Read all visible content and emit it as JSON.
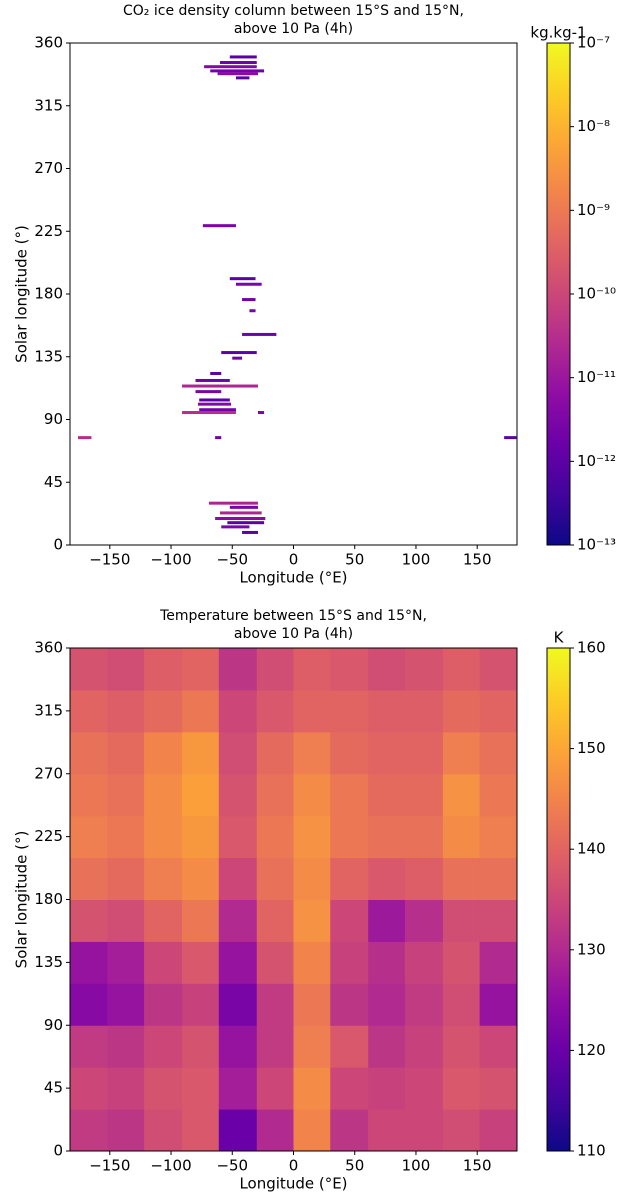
{
  "chart_data": [
    {
      "type": "segment",
      "title": [
        "CO₂ ice density column between 15°S and 15°N,",
        "above 10 Pa (4h)"
      ],
      "xlabel": "Longitude (°E)",
      "ylabel": "Solar longitude (°)",
      "colorbar_label": "kg.kg-1",
      "colormap": "plasma",
      "clog": true,
      "xlim": [
        -182.5,
        182.5
      ],
      "xticks": [
        {
          "value": -150,
          "label": "−150"
        },
        {
          "value": -100,
          "label": "−100"
        },
        {
          "value": -50,
          "label": "−50"
        },
        0,
        50,
        100,
        150
      ],
      "ylim": [
        0,
        360
      ],
      "yticks": [
        0,
        45,
        90,
        135,
        180,
        225,
        270,
        315,
        360
      ],
      "clim": [
        1e-13,
        1e-07
      ],
      "cticks": [
        {
          "value": 1e-13,
          "label": "10⁻¹³"
        },
        {
          "value": 1e-12,
          "label": "10⁻¹²"
        },
        {
          "value": 1e-11,
          "label": "10⁻¹¹"
        },
        {
          "value": 1e-10,
          "label": "10⁻¹⁰"
        },
        {
          "value": 1e-09,
          "label": "10⁻⁹"
        },
        {
          "value": 1e-08,
          "label": "10⁻⁸"
        },
        {
          "value": 1e-07,
          "label": "10⁻⁷"
        }
      ],
      "segments": [
        {
          "lon": [
            -52,
            -30
          ],
          "ls": 350,
          "value": 1e-12
        },
        {
          "lon": [
            -60,
            -30
          ],
          "ls": 346,
          "value": 2e-12
        },
        {
          "lon": [
            -73,
            -30
          ],
          "ls": 343,
          "value": 4e-12
        },
        {
          "lon": [
            -68,
            -24
          ],
          "ls": 340,
          "value": 2e-12
        },
        {
          "lon": [
            -62,
            -29
          ],
          "ls": 338,
          "value": 5e-12
        },
        {
          "lon": [
            -47,
            -36
          ],
          "ls": 335,
          "value": 1e-12
        },
        {
          "lon": [
            -74,
            -47
          ],
          "ls": 229,
          "value": 3e-12
        },
        {
          "lon": [
            -52,
            -31
          ],
          "ls": 191,
          "value": 1e-12
        },
        {
          "lon": [
            -47,
            -26
          ],
          "ls": 187,
          "value": 3e-12
        },
        {
          "lon": [
            -42,
            -31
          ],
          "ls": 176,
          "value": 2e-12
        },
        {
          "lon": [
            -36,
            -31
          ],
          "ls": 168,
          "value": 3e-12
        },
        {
          "lon": [
            -42,
            -14
          ],
          "ls": 151,
          "value": 2e-12
        },
        {
          "lon": [
            -59,
            -30
          ],
          "ls": 138,
          "value": 1e-12
        },
        {
          "lon": [
            -50,
            -42
          ],
          "ls": 134,
          "value": 2e-12
        },
        {
          "lon": [
            -68,
            -59
          ],
          "ls": 123,
          "value": 1e-12
        },
        {
          "lon": [
            -80,
            -52
          ],
          "ls": 118,
          "value": 2e-12
        },
        {
          "lon": [
            -91,
            -29
          ],
          "ls": 114,
          "value": 2e-11
        },
        {
          "lon": [
            -80,
            -59
          ],
          "ls": 110,
          "value": 3e-12
        },
        {
          "lon": [
            -77,
            -52
          ],
          "ls": 104,
          "value": 1e-12
        },
        {
          "lon": [
            -78,
            -51
          ],
          "ls": 101,
          "value": 4e-12
        },
        {
          "lon": [
            -77,
            -47
          ],
          "ls": 97,
          "value": 2e-12
        },
        {
          "lon": [
            -91,
            -47
          ],
          "ls": 95,
          "value": 3e-11
        },
        {
          "lon": [
            -29,
            -24
          ],
          "ls": 95,
          "value": 3e-12
        },
        {
          "lon": [
            -176,
            -165
          ],
          "ls": 77,
          "value": 3e-11
        },
        {
          "lon": [
            172,
            182
          ],
          "ls": 77,
          "value": 1e-12
        },
        {
          "lon": [
            -64,
            -59
          ],
          "ls": 77,
          "value": 2e-12
        },
        {
          "lon": [
            -69,
            -29
          ],
          "ls": 30,
          "value": 2e-11
        },
        {
          "lon": [
            -52,
            -29
          ],
          "ls": 27,
          "value": 3e-12
        },
        {
          "lon": [
            -60,
            -26
          ],
          "ls": 23,
          "value": 2e-11
        },
        {
          "lon": [
            -64,
            -23
          ],
          "ls": 19,
          "value": 5e-12
        },
        {
          "lon": [
            -54,
            -24
          ],
          "ls": 16,
          "value": 1e-12
        },
        {
          "lon": [
            -59,
            -36
          ],
          "ls": 13,
          "value": 3e-12
        },
        {
          "lon": [
            -42,
            -29
          ],
          "ls": 9,
          "value": 1e-12
        }
      ]
    },
    {
      "type": "heatmap",
      "title": [
        "Temperature between 15°S and 15°N,",
        "above 10 Pa (4h)"
      ],
      "xlabel": "Longitude (°E)",
      "ylabel": "Solar longitude (°)",
      "colorbar_label": "K",
      "colormap": "plasma",
      "clog": false,
      "xlim": [
        -182.5,
        182.5
      ],
      "xticks": [
        {
          "value": -150,
          "label": "−150"
        },
        {
          "value": -100,
          "label": "−100"
        },
        {
          "value": -50,
          "label": "−50"
        },
        0,
        50,
        100,
        150
      ],
      "ylim": [
        0,
        360
      ],
      "yticks": [
        0,
        45,
        90,
        135,
        180,
        225,
        270,
        315,
        360
      ],
      "clim": [
        110,
        160
      ],
      "cticks": [
        110,
        120,
        130,
        140,
        150,
        160
      ],
      "xbins": [
        -182.5,
        -152,
        -122,
        -91,
        -61,
        -30,
        0,
        30,
        61,
        91,
        122,
        152,
        182.5
      ],
      "ybins": [
        0,
        30,
        60,
        90,
        120,
        150,
        180,
        210,
        240,
        270,
        300,
        330,
        360
      ],
      "values": [
        [
          133,
          132,
          136,
          138,
          120,
          130,
          145,
          132,
          135,
          135,
          136,
          134
        ],
        [
          135,
          134,
          137,
          138,
          128,
          135,
          146,
          135,
          134,
          135,
          138,
          137
        ],
        [
          133,
          132,
          135,
          137,
          126,
          133,
          144,
          138,
          132,
          134,
          137,
          135
        ],
        [
          124,
          126,
          132,
          134,
          122,
          133,
          143,
          132,
          130,
          133,
          136,
          126
        ],
        [
          126,
          128,
          135,
          138,
          126,
          137,
          145,
          134,
          131,
          134,
          137,
          130
        ],
        [
          137,
          136,
          140,
          143,
          130,
          140,
          147,
          135,
          127,
          131,
          136,
          136
        ],
        [
          142,
          141,
          144,
          146,
          135,
          142,
          146,
          140,
          138,
          139,
          142,
          142
        ],
        [
          144,
          143,
          146,
          148,
          138,
          143,
          147,
          143,
          142,
          142,
          146,
          144
        ],
        [
          143,
          142,
          146,
          149,
          137,
          142,
          146,
          143,
          141,
          141,
          147,
          143
        ],
        [
          142,
          141,
          145,
          148,
          136,
          141,
          144,
          141,
          140,
          140,
          144,
          142
        ],
        [
          140,
          139,
          141,
          143,
          135,
          138,
          140,
          140,
          139,
          139,
          141,
          140
        ],
        [
          137,
          136,
          139,
          140,
          132,
          136,
          139,
          138,
          136,
          137,
          139,
          137
        ]
      ]
    }
  ]
}
